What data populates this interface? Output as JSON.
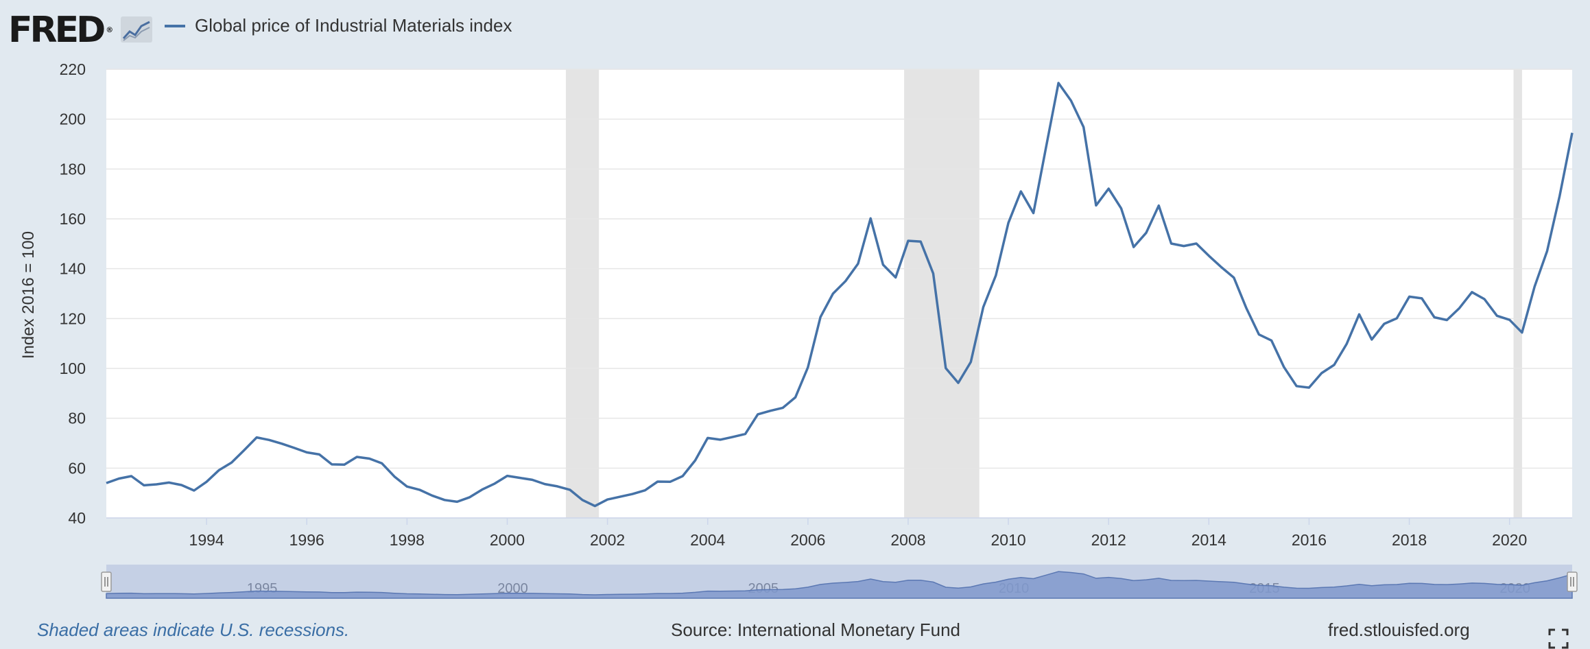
{
  "header": {
    "logo_text": "FRED",
    "logo_mark": "®",
    "logo_icon": "line-chart-icon",
    "legend_label": "Global price of Industrial Materials index"
  },
  "colors": {
    "series": "#4572a7",
    "recession_band": "#e4e4e4",
    "background": "#e1e9f0",
    "navigator_fill": "#c5d0e5",
    "navigator_area": "#8099cc"
  },
  "footer": {
    "recession_note": "Shaded areas indicate U.S. recessions.",
    "source": "Source: International Monetary Fund",
    "site": "fred.stlouisfed.org"
  },
  "chart_data": {
    "type": "line",
    "title": "",
    "xlabel": "",
    "ylabel": "Index 2016 = 100",
    "xlim": [
      1992,
      2021.25
    ],
    "ylim": [
      40,
      220
    ],
    "yticks": [
      40,
      60,
      80,
      100,
      120,
      140,
      160,
      180,
      200,
      220
    ],
    "xticks": [
      "1994",
      "1996",
      "1998",
      "2000",
      "2002",
      "2004",
      "2006",
      "2008",
      "2010",
      "2012",
      "2014",
      "2016",
      "2018",
      "2020"
    ],
    "grid": true,
    "legend": "top-left",
    "recessions": [
      [
        2001.17,
        2001.83
      ],
      [
        2007.92,
        2009.42
      ],
      [
        2020.08,
        2020.25
      ]
    ],
    "navigator_labels": [
      "1995",
      "2000",
      "2005",
      "2010",
      "2015",
      "2020"
    ],
    "series": [
      {
        "name": "Global price of Industrial Materials index",
        "points": [
          [
            1992.0,
            54
          ],
          [
            1992.25,
            55.8
          ],
          [
            1992.5,
            56.8
          ],
          [
            1992.75,
            53.1
          ],
          [
            1993.0,
            53.5
          ],
          [
            1993.25,
            54.2
          ],
          [
            1993.5,
            53.2
          ],
          [
            1993.75,
            51
          ],
          [
            1994.0,
            54.5
          ],
          [
            1994.25,
            59.2
          ],
          [
            1994.5,
            62.2
          ],
          [
            1994.75,
            67.2
          ],
          [
            1995.0,
            72.3
          ],
          [
            1995.25,
            71.3
          ],
          [
            1995.5,
            69.8
          ],
          [
            1995.75,
            68.1
          ],
          [
            1996.0,
            66.3
          ],
          [
            1996.25,
            65.5
          ],
          [
            1996.5,
            61.5
          ],
          [
            1996.75,
            61.4
          ],
          [
            1997.0,
            64.5
          ],
          [
            1997.25,
            63.8
          ],
          [
            1997.5,
            61.9
          ],
          [
            1997.75,
            56.6
          ],
          [
            1998.0,
            52.6
          ],
          [
            1998.25,
            51.3
          ],
          [
            1998.5,
            49
          ],
          [
            1998.75,
            47.2
          ],
          [
            1999.0,
            46.5
          ],
          [
            1999.25,
            48.3
          ],
          [
            1999.5,
            51.4
          ],
          [
            1999.75,
            53.8
          ],
          [
            2000.0,
            56.9
          ],
          [
            2000.25,
            56.1
          ],
          [
            2000.5,
            55.3
          ],
          [
            2000.75,
            53.6
          ],
          [
            2001.0,
            52.7
          ],
          [
            2001.25,
            51.3
          ],
          [
            2001.5,
            47.2
          ],
          [
            2001.75,
            44.8
          ],
          [
            2002.0,
            47.4
          ],
          [
            2002.25,
            48.5
          ],
          [
            2002.5,
            49.6
          ],
          [
            2002.75,
            51.1
          ],
          [
            2003.0,
            54.6
          ],
          [
            2003.25,
            54.5
          ],
          [
            2003.5,
            56.8
          ],
          [
            2003.75,
            63.1
          ],
          [
            2004.0,
            72.1
          ],
          [
            2004.25,
            71.4
          ],
          [
            2004.5,
            72.5
          ],
          [
            2004.75,
            73.7
          ],
          [
            2005.0,
            81.6
          ],
          [
            2005.25,
            83
          ],
          [
            2005.5,
            84.2
          ],
          [
            2005.75,
            88.4
          ],
          [
            2006.0,
            100.4
          ],
          [
            2006.25,
            120.6
          ],
          [
            2006.5,
            130
          ],
          [
            2006.75,
            135
          ],
          [
            2007.0,
            142
          ],
          [
            2007.25,
            160.2
          ],
          [
            2007.5,
            141.6
          ],
          [
            2007.75,
            136.5
          ],
          [
            2008.0,
            151.2
          ],
          [
            2008.25,
            150.9
          ],
          [
            2008.5,
            138.1
          ],
          [
            2008.75,
            100.1
          ],
          [
            2009.0,
            94.2
          ],
          [
            2009.25,
            102.6
          ],
          [
            2009.5,
            124.6
          ],
          [
            2009.75,
            137.3
          ],
          [
            2010.0,
            158.4
          ],
          [
            2010.25,
            171
          ],
          [
            2010.5,
            162.3
          ],
          [
            2010.75,
            188.6
          ],
          [
            2011.0,
            214.5
          ],
          [
            2011.25,
            207.4
          ],
          [
            2011.5,
            196.8
          ],
          [
            2011.75,
            165.4
          ],
          [
            2012.0,
            172.1
          ],
          [
            2012.25,
            164.2
          ],
          [
            2012.5,
            148.7
          ],
          [
            2012.75,
            154.4
          ],
          [
            2013.0,
            165.3
          ],
          [
            2013.25,
            150.1
          ],
          [
            2013.5,
            149.1
          ],
          [
            2013.75,
            150.1
          ],
          [
            2014.0,
            145.2
          ],
          [
            2014.25,
            140.6
          ],
          [
            2014.5,
            136.4
          ],
          [
            2014.75,
            124.1
          ],
          [
            2015.0,
            113.6
          ],
          [
            2015.25,
            111.2
          ],
          [
            2015.5,
            100.5
          ],
          [
            2015.75,
            92.9
          ],
          [
            2016.0,
            92.3
          ],
          [
            2016.25,
            98.1
          ],
          [
            2016.5,
            101.4
          ],
          [
            2016.75,
            109.8
          ],
          [
            2017.0,
            121.7
          ],
          [
            2017.25,
            111.6
          ],
          [
            2017.5,
            117.9
          ],
          [
            2017.75,
            120.1
          ],
          [
            2018.0,
            128.8
          ],
          [
            2018.25,
            128.1
          ],
          [
            2018.5,
            120.5
          ],
          [
            2018.75,
            119.4
          ],
          [
            2019.0,
            124.2
          ],
          [
            2019.25,
            130.6
          ],
          [
            2019.5,
            127.8
          ],
          [
            2019.75,
            121.1
          ],
          [
            2020.0,
            119.5
          ],
          [
            2020.25,
            114.4
          ],
          [
            2020.5,
            132.8
          ],
          [
            2020.75,
            147.1
          ],
          [
            2021.0,
            169.1
          ],
          [
            2021.25,
            194.5
          ]
        ]
      }
    ]
  }
}
